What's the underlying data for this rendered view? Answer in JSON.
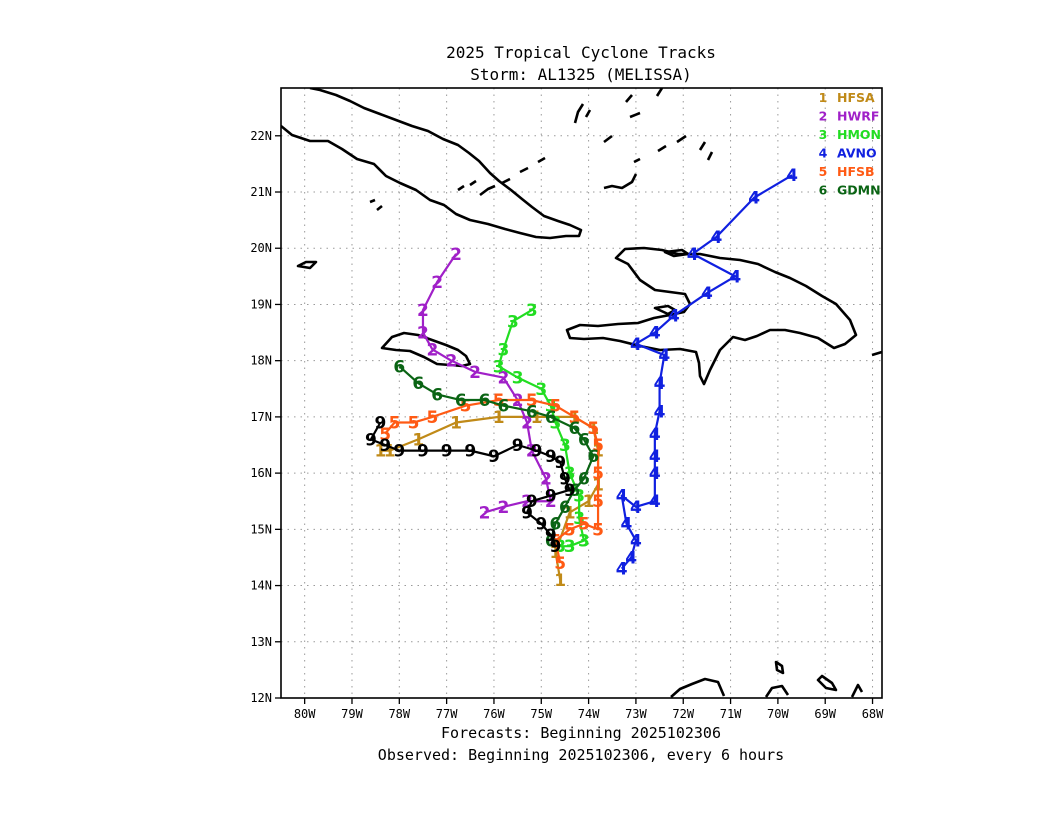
{
  "titles": {
    "line1": "2025 Tropical Cyclone Tracks",
    "line2": "Storm: AL1325 (MELISSA)"
  },
  "footer": {
    "line1": "Forecasts: Beginning 2025102306",
    "line2": "Observed: Beginning 2025102306, every 6 hours"
  },
  "chart_data": {
    "type": "track-map",
    "x_axis": {
      "range": [
        -80.5,
        -67.8
      ],
      "ticks": [
        -80,
        -79,
        -78,
        -77,
        -76,
        -75,
        -74,
        -73,
        -72,
        -71,
        -70,
        -69,
        -68
      ],
      "tick_labels": [
        "80W",
        "79W",
        "78W",
        "77W",
        "76W",
        "75W",
        "74W",
        "73W",
        "72W",
        "71W",
        "70W",
        "69W",
        "68W"
      ]
    },
    "y_axis": {
      "range": [
        12,
        22.85
      ],
      "ticks": [
        12,
        13,
        14,
        15,
        16,
        17,
        18,
        19,
        20,
        21,
        22
      ],
      "tick_labels": [
        "12N",
        "13N",
        "14N",
        "15N",
        "16N",
        "17N",
        "18N",
        "19N",
        "20N",
        "21N",
        "22N"
      ]
    },
    "grid": true,
    "legend_position": "top-right",
    "series": [
      {
        "marker": "1",
        "name": "HFSA",
        "color": "#c08a18",
        "points": [
          [
            -74.6,
            14.1
          ],
          [
            -74.7,
            14.6
          ],
          [
            -74.4,
            15.3
          ],
          [
            -74.0,
            15.5
          ],
          [
            -73.8,
            15.8
          ],
          [
            -73.8,
            16.4
          ],
          [
            -73.9,
            16.8
          ],
          [
            -74.3,
            17.0
          ],
          [
            -75.1,
            17.0
          ],
          [
            -75.9,
            17.0
          ],
          [
            -76.8,
            16.9
          ],
          [
            -77.6,
            16.6
          ],
          [
            -78.2,
            16.4
          ],
          [
            -78.4,
            16.4
          ]
        ]
      },
      {
        "marker": "2",
        "name": "HWRF",
        "color": "#a020c8",
        "points": [
          [
            -76.8,
            19.9
          ],
          [
            -77.2,
            19.4
          ],
          [
            -77.5,
            18.9
          ],
          [
            -77.5,
            18.5
          ],
          [
            -77.3,
            18.2
          ],
          [
            -76.9,
            18.0
          ],
          [
            -76.4,
            17.8
          ],
          [
            -75.8,
            17.7
          ],
          [
            -75.5,
            17.3
          ],
          [
            -75.3,
            16.9
          ],
          [
            -75.2,
            16.4
          ],
          [
            -74.9,
            15.9
          ],
          [
            -74.8,
            15.5
          ],
          [
            -75.3,
            15.5
          ],
          [
            -75.8,
            15.4
          ],
          [
            -76.2,
            15.3
          ]
        ]
      },
      {
        "marker": "3",
        "name": "HMON",
        "color": "#22dd22",
        "points": [
          [
            -75.2,
            18.9
          ],
          [
            -75.6,
            18.7
          ],
          [
            -75.8,
            18.2
          ],
          [
            -75.9,
            17.9
          ],
          [
            -75.5,
            17.7
          ],
          [
            -75.0,
            17.5
          ],
          [
            -74.8,
            17.2
          ],
          [
            -74.7,
            16.9
          ],
          [
            -74.5,
            16.5
          ],
          [
            -74.4,
            16.0
          ],
          [
            -74.2,
            15.6
          ],
          [
            -74.2,
            15.2
          ],
          [
            -74.1,
            14.8
          ],
          [
            -74.4,
            14.7
          ],
          [
            -74.6,
            14.7
          ]
        ]
      },
      {
        "marker": "4",
        "name": "AVNO",
        "color": "#1020e0",
        "points": [
          [
            -69.7,
            21.3
          ],
          [
            -70.5,
            20.9
          ],
          [
            -71.3,
            20.2
          ],
          [
            -71.8,
            19.9
          ],
          [
            -70.9,
            19.5
          ],
          [
            -71.5,
            19.2
          ],
          [
            -72.2,
            18.8
          ],
          [
            -72.6,
            18.5
          ],
          [
            -73.0,
            18.3
          ],
          [
            -72.4,
            18.1
          ],
          [
            -72.5,
            17.6
          ],
          [
            -72.5,
            17.1
          ],
          [
            -72.6,
            16.7
          ],
          [
            -72.6,
            16.3
          ],
          [
            -72.6,
            16.0
          ],
          [
            -72.6,
            15.5
          ],
          [
            -73.0,
            15.4
          ],
          [
            -73.3,
            15.6
          ],
          [
            -73.2,
            15.1
          ],
          [
            -73.0,
            14.8
          ],
          [
            -73.1,
            14.5
          ],
          [
            -73.3,
            14.3
          ]
        ]
      },
      {
        "marker": "5",
        "name": "HFSB",
        "color": "#ff5a14",
        "points": [
          [
            -74.6,
            14.4
          ],
          [
            -74.7,
            14.8
          ],
          [
            -74.4,
            15.0
          ],
          [
            -74.1,
            15.1
          ],
          [
            -73.8,
            15.0
          ],
          [
            -73.8,
            15.5
          ],
          [
            -73.8,
            16.0
          ],
          [
            -73.8,
            16.5
          ],
          [
            -73.9,
            16.8
          ],
          [
            -74.3,
            17.0
          ],
          [
            -74.7,
            17.2
          ],
          [
            -75.2,
            17.3
          ],
          [
            -75.9,
            17.3
          ],
          [
            -76.6,
            17.2
          ],
          [
            -77.3,
            17.0
          ],
          [
            -77.7,
            16.9
          ],
          [
            -78.1,
            16.9
          ],
          [
            -78.3,
            16.7
          ]
        ]
      },
      {
        "marker": "6",
        "name": "GDMN",
        "color": "#0a6414",
        "points": [
          [
            -78.0,
            17.9
          ],
          [
            -77.6,
            17.6
          ],
          [
            -77.2,
            17.4
          ],
          [
            -76.7,
            17.3
          ],
          [
            -76.2,
            17.3
          ],
          [
            -75.8,
            17.2
          ],
          [
            -75.2,
            17.1
          ],
          [
            -74.8,
            17.0
          ],
          [
            -74.3,
            16.8
          ],
          [
            -74.1,
            16.6
          ],
          [
            -73.9,
            16.3
          ],
          [
            -74.1,
            15.9
          ],
          [
            -74.3,
            15.7
          ],
          [
            -74.5,
            15.4
          ],
          [
            -74.7,
            15.1
          ],
          [
            -74.8,
            14.8
          ]
        ]
      },
      {
        "marker": "9",
        "name": "",
        "color": "#000000",
        "points": [
          [
            -78.4,
            16.9
          ],
          [
            -78.6,
            16.6
          ],
          [
            -78.3,
            16.5
          ],
          [
            -78.0,
            16.4
          ],
          [
            -77.5,
            16.4
          ],
          [
            -77.0,
            16.4
          ],
          [
            -76.5,
            16.4
          ],
          [
            -76.0,
            16.3
          ],
          [
            -75.5,
            16.5
          ],
          [
            -75.1,
            16.4
          ],
          [
            -74.8,
            16.3
          ],
          [
            -74.6,
            16.2
          ],
          [
            -74.5,
            15.9
          ],
          [
            -74.4,
            15.7
          ],
          [
            -74.8,
            15.6
          ],
          [
            -75.2,
            15.5
          ],
          [
            -75.3,
            15.3
          ],
          [
            -75.0,
            15.1
          ],
          [
            -74.8,
            14.9
          ],
          [
            -74.7,
            14.7
          ]
        ]
      }
    ]
  }
}
